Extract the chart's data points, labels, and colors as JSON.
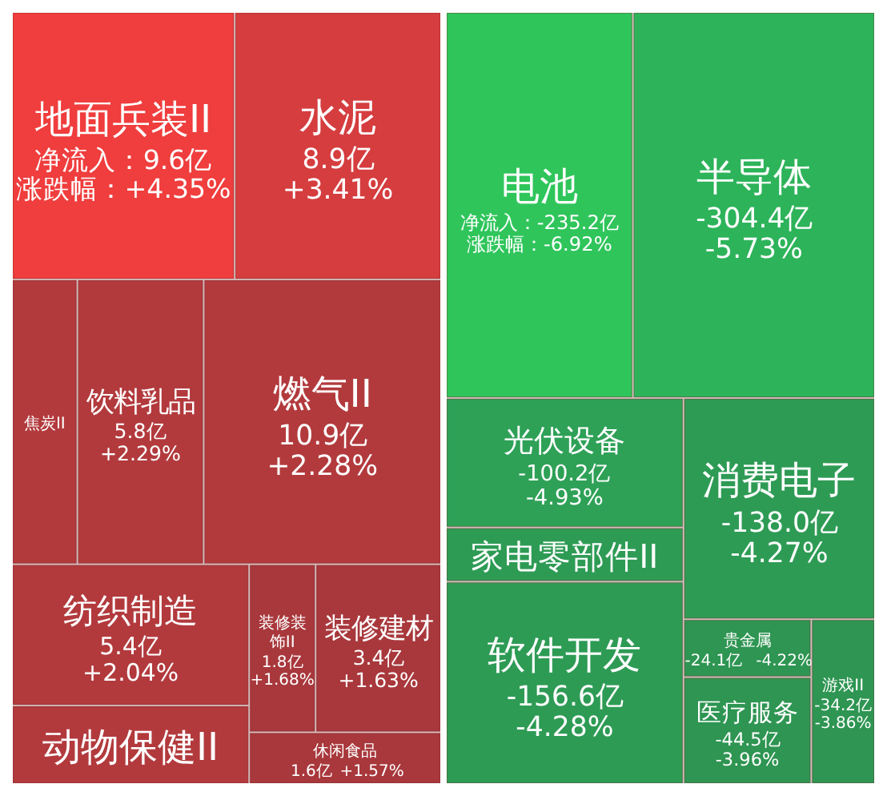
{
  "chart_data": [
    {
      "type": "other",
      "categories": [
        "地面兵装II",
        "水泥",
        "焦炭II",
        "饮料乳品",
        "燃气II",
        "纺织制造",
        "动物保健II",
        "装修装饰II",
        "装修建材",
        "休闲食品"
      ],
      "series": [
        {
          "colors": [
            "#f03d3d",
            "#d53d3f",
            "#b23a3d",
            "#b23a3d",
            "#b23a3d",
            "#b23a3d",
            "#b23a3d",
            "#a8383c",
            "#a8383c",
            "#a8383c"
          ],
          "values": [
            9.6,
            8.9,
            null,
            5.8,
            10.9,
            5.4,
            null,
            1.8,
            3.4,
            1.6
          ],
          "value_labels": [
            "净流入：9.6亿",
            "8.9亿",
            null,
            "5.8亿",
            "10.9亿",
            "5.4亿",
            null,
            "1.8亿",
            "3.4亿",
            "1.6亿"
          ]
        },
        {
          "values": [
            4.35,
            3.41,
            null,
            2.29,
            2.28,
            2.04,
            null,
            1.68,
            1.63,
            1.57
          ],
          "value_labels": [
            "涨跌幅：+4.35%",
            "+3.41%",
            null,
            "+2.29%",
            "+2.28%",
            "+2.04%",
            null,
            "+1.68%",
            "+1.63%",
            "+1.57%"
          ]
        }
      ]
    },
    {
      "type": "other",
      "categories": [
        "电池",
        "半导体",
        "光伏设备",
        "家电零部件II",
        "软件开发",
        "消费电子",
        "贵金属",
        "医疗服务",
        "游戏II"
      ],
      "series": [
        {
          "colors": [
            "#2fc55b",
            "#2db35a",
            "#2ea157",
            "#2e9b55",
            "#2e9b55",
            "#2e9b55",
            "#2e9552",
            "#2e9552",
            "#2e9552"
          ],
          "values": [
            -235.2,
            -304.4,
            -100.2,
            null,
            -156.6,
            -138.0,
            -24.1,
            -44.5,
            -34.2
          ],
          "value_labels": [
            "净流入：-235.2亿",
            "-304.4亿",
            "-100.2亿",
            null,
            "-156.6亿",
            "-138.0亿",
            "-24.1亿",
            "-44.5亿",
            "-34.2亿"
          ]
        },
        {
          "values": [
            -6.92,
            -5.73,
            -4.93,
            null,
            -4.28,
            -4.27,
            -4.22,
            -3.96,
            -3.86
          ],
          "value_labels": [
            "涨跌幅：-6.92%",
            "-5.73%",
            "-4.93%",
            null,
            "-4.28%",
            "-4.27%",
            "-4.22%",
            "-3.96%",
            "-3.86%"
          ]
        }
      ]
    }
  ]
}
